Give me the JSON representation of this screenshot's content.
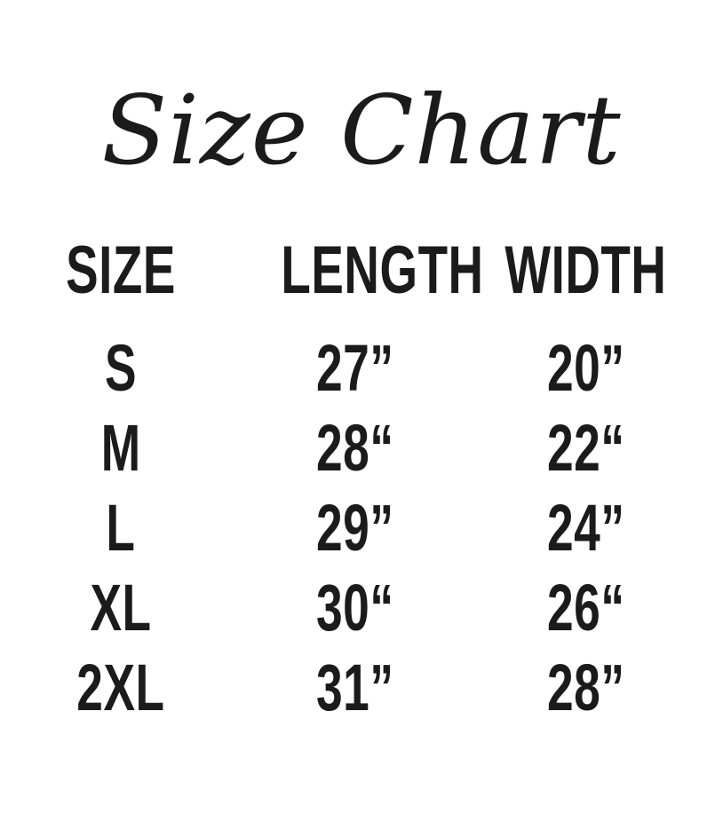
{
  "title": "Size Chart",
  "colors": {
    "text": "#1b1b1b",
    "background": "#ffffff"
  },
  "table": {
    "headers": [
      "SIZE",
      "LENGTH",
      "WIDTH"
    ],
    "rows": [
      {
        "size": "S",
        "length": "27”",
        "width": "20”"
      },
      {
        "size": "M",
        "length": "28“",
        "width": "22“"
      },
      {
        "size": "L",
        "length": "29”",
        "width": "24”"
      },
      {
        "size": "XL",
        "length": "30“",
        "width": "26“"
      },
      {
        "size": "2XL",
        "length": "31”",
        "width": "28”"
      }
    ]
  },
  "chart_data": {
    "type": "table",
    "title": "Size Chart",
    "columns": [
      "SIZE",
      "LENGTH",
      "WIDTH"
    ],
    "rows": [
      [
        "S",
        "27\"",
        "20\""
      ],
      [
        "M",
        "28\"",
        "22\""
      ],
      [
        "L",
        "29\"",
        "24\""
      ],
      [
        "XL",
        "30\"",
        "26\""
      ],
      [
        "2XL",
        "31\"",
        "28\""
      ]
    ]
  }
}
